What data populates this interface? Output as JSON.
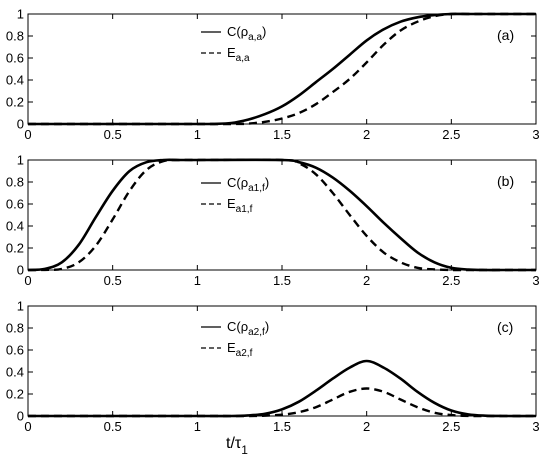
{
  "chart_data": [
    {
      "type": "line",
      "panel_label": "(a)",
      "xlim": [
        0,
        3
      ],
      "ylim": [
        0,
        1
      ],
      "xticks": [
        0,
        0.5,
        1,
        1.5,
        2,
        2.5,
        3
      ],
      "xtick_labels": [
        "0",
        "0.5",
        "1",
        "1.5",
        "2",
        "2.5",
        "3"
      ],
      "yticks": [
        0,
        0.2,
        0.4,
        0.6,
        0.8,
        1
      ],
      "ytick_labels": [
        "0",
        "0.2",
        "0.4",
        "0.6",
        "0.8",
        "1"
      ],
      "grid": false,
      "legend": {
        "placement": "top-center"
      },
      "series": [
        {
          "legend_main": "C(ρ",
          "legend_sub": "a,a",
          "legend_close": ")",
          "style": "solid",
          "x": [
            0,
            0.5,
            1.0,
            1.1,
            1.2,
            1.3,
            1.4,
            1.5,
            1.6,
            1.7,
            1.8,
            1.9,
            2.0,
            2.1,
            2.2,
            2.3,
            2.4,
            2.5,
            2.6,
            2.7,
            2.8,
            3.0
          ],
          "y": [
            0,
            0,
            0,
            0.001,
            0.009,
            0.04,
            0.09,
            0.16,
            0.26,
            0.38,
            0.5,
            0.63,
            0.76,
            0.86,
            0.93,
            0.97,
            0.99,
            1.0,
            1.0,
            1.0,
            1.0,
            1.0
          ]
        },
        {
          "legend_main": "E",
          "legend_sub": "a,a",
          "legend_close": "",
          "style": "dashed",
          "x": [
            0,
            0.5,
            1.0,
            1.2,
            1.3,
            1.4,
            1.5,
            1.6,
            1.7,
            1.8,
            1.9,
            2.0,
            2.1,
            2.2,
            2.3,
            2.4,
            2.5,
            2.6,
            2.7,
            2.8,
            3.0
          ],
          "y": [
            0,
            0,
            0,
            0,
            0.003,
            0.02,
            0.05,
            0.1,
            0.18,
            0.29,
            0.41,
            0.56,
            0.72,
            0.85,
            0.93,
            0.98,
            1.0,
            1.0,
            1.0,
            1.0,
            1.0
          ]
        }
      ]
    },
    {
      "type": "line",
      "panel_label": "(b)",
      "xlim": [
        0,
        3
      ],
      "ylim": [
        0,
        1
      ],
      "xticks": [
        0,
        0.5,
        1,
        1.5,
        2,
        2.5,
        3
      ],
      "xtick_labels": [
        "0",
        "0.5",
        "1",
        "1.5",
        "2",
        "2.5",
        "3"
      ],
      "yticks": [
        0,
        0.2,
        0.4,
        0.6,
        0.8,
        1
      ],
      "ytick_labels": [
        "0",
        "0.2",
        "0.4",
        "0.6",
        "0.8",
        "1"
      ],
      "grid": false,
      "legend": {
        "placement": "top-right"
      },
      "series": [
        {
          "legend_main": "C(ρ",
          "legend_sub": "a1,f",
          "legend_close": ")",
          "style": "solid",
          "x": [
            0,
            0.1,
            0.2,
            0.3,
            0.4,
            0.5,
            0.6,
            0.7,
            0.8,
            0.9,
            1.0,
            1.5,
            1.6,
            1.7,
            1.8,
            1.9,
            2.0,
            2.1,
            2.2,
            2.3,
            2.4,
            2.5,
            2.6,
            2.7,
            2.8,
            3.0
          ],
          "y": [
            0,
            0.01,
            0.07,
            0.23,
            0.48,
            0.72,
            0.9,
            0.98,
            1.0,
            1.0,
            1.0,
            1.0,
            0.98,
            0.93,
            0.84,
            0.72,
            0.58,
            0.43,
            0.29,
            0.16,
            0.07,
            0.02,
            0.004,
            0,
            0,
            0
          ]
        },
        {
          "legend_main": "E",
          "legend_sub": "a1,f",
          "legend_close": "",
          "style": "dashed",
          "x": [
            0,
            0.1,
            0.2,
            0.3,
            0.4,
            0.5,
            0.6,
            0.7,
            0.8,
            0.9,
            1.0,
            1.5,
            1.6,
            1.7,
            1.8,
            1.9,
            2.0,
            2.1,
            2.2,
            2.3,
            2.4,
            2.5,
            2.6,
            2.7,
            2.8,
            3.0
          ],
          "y": [
            0,
            0.001,
            0.01,
            0.07,
            0.22,
            0.46,
            0.72,
            0.91,
            0.99,
            1.0,
            1.0,
            1.0,
            0.97,
            0.87,
            0.7,
            0.5,
            0.31,
            0.16,
            0.07,
            0.02,
            0.005,
            0,
            0,
            0,
            0,
            0
          ]
        }
      ]
    },
    {
      "type": "line",
      "panel_label": "(c)",
      "xlim": [
        0,
        3
      ],
      "ylim": [
        0,
        1
      ],
      "xticks": [
        0,
        0.5,
        1,
        1.5,
        2,
        2.5,
        3
      ],
      "xtick_labels": [
        "0",
        "0.5",
        "1",
        "1.5",
        "2",
        "2.5",
        "3"
      ],
      "yticks": [
        0,
        0.2,
        0.4,
        0.6,
        0.8,
        1
      ],
      "ytick_labels": [
        "0",
        "0.2",
        "0.4",
        "0.6",
        "0.8",
        "1"
      ],
      "grid": false,
      "legend": {
        "placement": "top-center"
      },
      "xlabel_main": "t/τ",
      "xlabel_sub": "1",
      "series": [
        {
          "legend_main": "C(ρ",
          "legend_sub": "a2,f",
          "legend_close": ")",
          "style": "solid",
          "x": [
            0,
            1.0,
            1.2,
            1.3,
            1.4,
            1.5,
            1.6,
            1.7,
            1.8,
            1.9,
            2.0,
            2.1,
            2.2,
            2.3,
            2.4,
            2.5,
            2.6,
            2.7,
            2.8,
            3.0
          ],
          "y": [
            0,
            0,
            0,
            0.005,
            0.02,
            0.06,
            0.13,
            0.23,
            0.34,
            0.44,
            0.5,
            0.44,
            0.34,
            0.22,
            0.12,
            0.05,
            0.015,
            0.003,
            0,
            0
          ]
        },
        {
          "legend_main": "E",
          "legend_sub": "a2,f",
          "legend_close": "",
          "style": "dashed",
          "x": [
            0,
            1.0,
            1.3,
            1.4,
            1.5,
            1.6,
            1.7,
            1.8,
            1.9,
            2.0,
            2.1,
            2.2,
            2.3,
            2.4,
            2.5,
            2.6,
            2.7,
            3.0
          ],
          "y": [
            0,
            0,
            0,
            0.003,
            0.012,
            0.035,
            0.08,
            0.15,
            0.22,
            0.25,
            0.22,
            0.15,
            0.08,
            0.03,
            0.008,
            0.001,
            0,
            0
          ]
        }
      ]
    }
  ]
}
